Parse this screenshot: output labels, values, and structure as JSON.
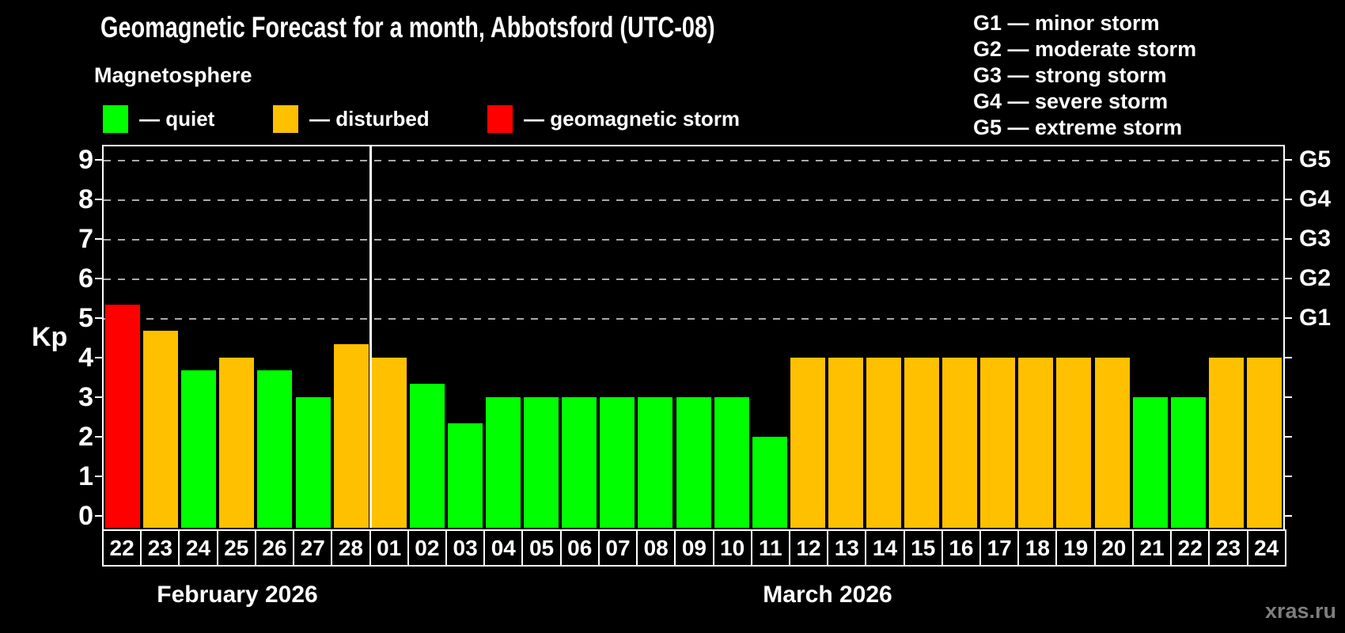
{
  "title": "Geomagnetic Forecast for a month, Abbotsford (UTC-08)",
  "subtitle": "Magnetosphere",
  "legend": {
    "items": [
      {
        "label": "— quiet",
        "status": "quiet",
        "color": "#00ff00"
      },
      {
        "label": "— disturbed",
        "status": "disturbed",
        "color": "#ffc000"
      },
      {
        "label": "— geomagnetic storm",
        "status": "storm",
        "color": "#ff0000"
      }
    ]
  },
  "g_scale_legend": [
    "G1 — minor storm",
    "G2 — moderate storm",
    "G3 — strong storm",
    "G4 — severe storm",
    "G5 — extreme storm"
  ],
  "watermark": "xras.ru",
  "chart_data": {
    "type": "bar",
    "title": "Geomagnetic Forecast for a month, Abbotsford (UTC-08)",
    "ylabel": "Kp",
    "ylim": [
      0,
      9.7
    ],
    "yticks": [
      0,
      1,
      2,
      3,
      4,
      5,
      6,
      7,
      8,
      9
    ],
    "grid_on": true,
    "gridline_kp_levels": [
      5,
      6,
      7,
      8,
      9
    ],
    "right_axis_labels": [
      {
        "label": "G1",
        "kp": 5
      },
      {
        "label": "G2",
        "kp": 6
      },
      {
        "label": "G3",
        "kp": 7
      },
      {
        "label": "G4",
        "kp": 8
      },
      {
        "label": "G5",
        "kp": 9
      }
    ],
    "status_colors": {
      "quiet": "#00ff00",
      "disturbed": "#ffc000",
      "storm": "#ff0000"
    },
    "months": [
      {
        "label": "February 2026",
        "days_count": 7
      },
      {
        "label": "March 2026",
        "days_count": 24
      }
    ],
    "bars": [
      {
        "day": "22",
        "kp": 5.33,
        "status": "storm"
      },
      {
        "day": "23",
        "kp": 4.67,
        "status": "disturbed"
      },
      {
        "day": "24",
        "kp": 3.67,
        "status": "quiet"
      },
      {
        "day": "25",
        "kp": 4.0,
        "status": "disturbed"
      },
      {
        "day": "26",
        "kp": 3.67,
        "status": "quiet"
      },
      {
        "day": "27",
        "kp": 3.0,
        "status": "quiet"
      },
      {
        "day": "28",
        "kp": 4.33,
        "status": "disturbed"
      },
      {
        "day": "01",
        "kp": 4.0,
        "status": "disturbed"
      },
      {
        "day": "02",
        "kp": 3.33,
        "status": "quiet"
      },
      {
        "day": "03",
        "kp": 2.33,
        "status": "quiet"
      },
      {
        "day": "04",
        "kp": 3.0,
        "status": "quiet"
      },
      {
        "day": "05",
        "kp": 3.0,
        "status": "quiet"
      },
      {
        "day": "06",
        "kp": 3.0,
        "status": "quiet"
      },
      {
        "day": "07",
        "kp": 3.0,
        "status": "quiet"
      },
      {
        "day": "08",
        "kp": 3.0,
        "status": "quiet"
      },
      {
        "day": "09",
        "kp": 3.0,
        "status": "quiet"
      },
      {
        "day": "10",
        "kp": 3.0,
        "status": "quiet"
      },
      {
        "day": "11",
        "kp": 2.0,
        "status": "quiet"
      },
      {
        "day": "12",
        "kp": 4.0,
        "status": "disturbed"
      },
      {
        "day": "13",
        "kp": 4.0,
        "status": "disturbed"
      },
      {
        "day": "14",
        "kp": 4.0,
        "status": "disturbed"
      },
      {
        "day": "15",
        "kp": 4.0,
        "status": "disturbed"
      },
      {
        "day": "16",
        "kp": 4.0,
        "status": "disturbed"
      },
      {
        "day": "17",
        "kp": 4.0,
        "status": "disturbed"
      },
      {
        "day": "18",
        "kp": 4.0,
        "status": "disturbed"
      },
      {
        "day": "19",
        "kp": 4.0,
        "status": "disturbed"
      },
      {
        "day": "20",
        "kp": 4.0,
        "status": "disturbed"
      },
      {
        "day": "21",
        "kp": 3.0,
        "status": "quiet"
      },
      {
        "day": "22",
        "kp": 3.0,
        "status": "quiet"
      },
      {
        "day": "23",
        "kp": 4.0,
        "status": "disturbed"
      },
      {
        "day": "24",
        "kp": 4.0,
        "status": "disturbed"
      }
    ]
  }
}
